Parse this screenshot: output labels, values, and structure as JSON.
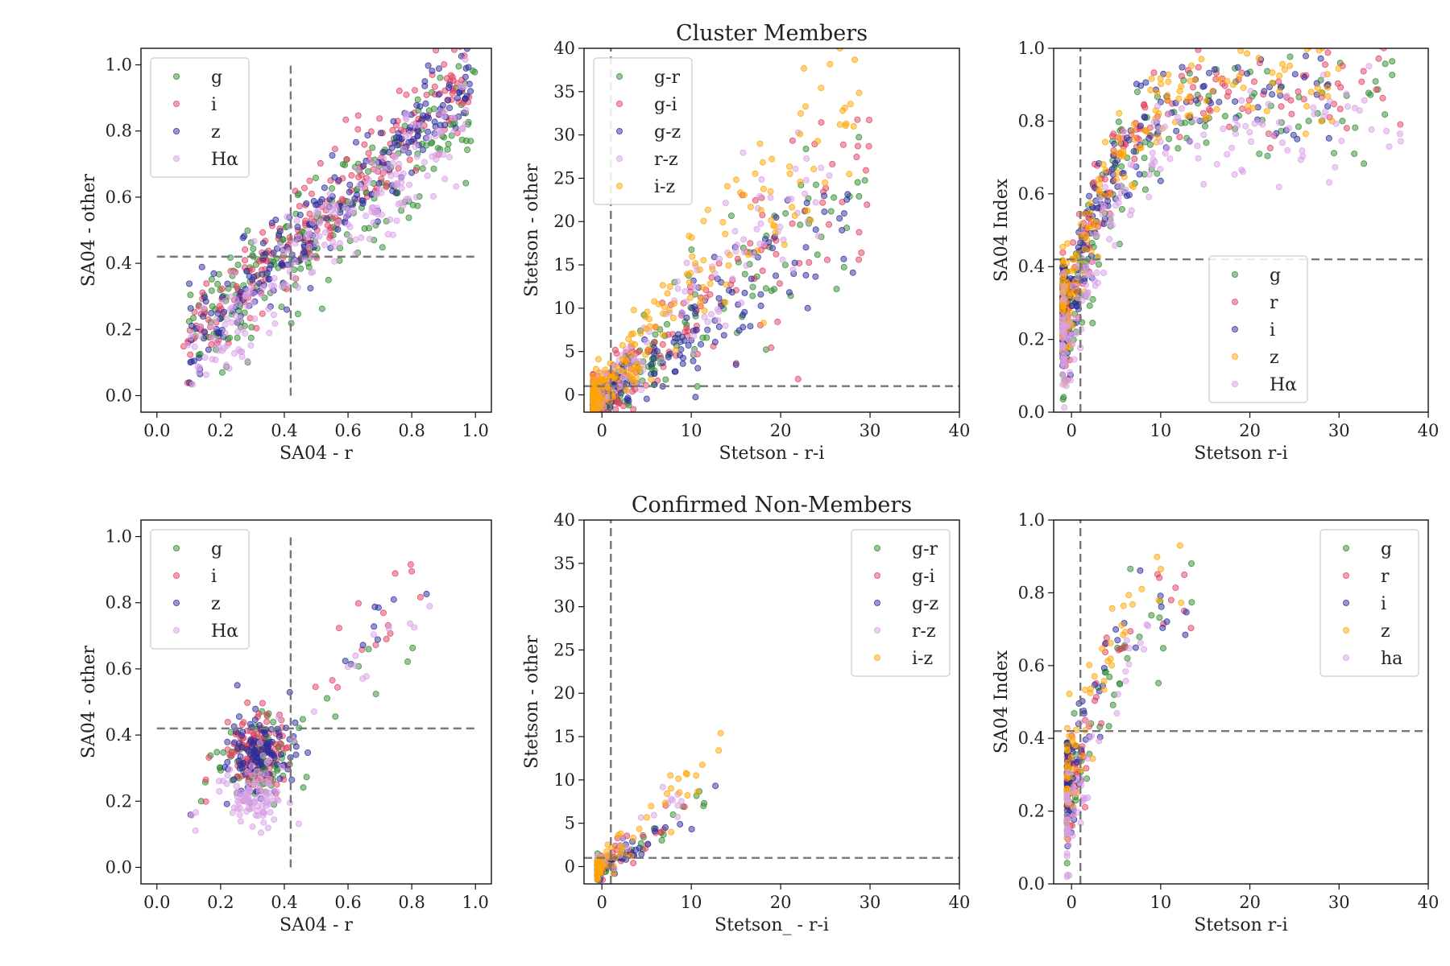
{
  "figure_titles": [
    "Cluster Members",
    "Confirmed Non-Members"
  ],
  "colors": {
    "g": "#2e8b2e",
    "r": "#e0405f",
    "i": "#2b2b9c",
    "z": "#ffa500",
    "ha": "#d8a0e6"
  },
  "chart_data": [
    {
      "id": "p00",
      "type": "scatter",
      "title": "",
      "xlabel": "SA04 - r",
      "ylabel": "SA04 - other",
      "xlim": [
        -0.05,
        1.05
      ],
      "ylim": [
        -0.05,
        1.05
      ],
      "xticks": [
        0,
        0.2,
        0.4,
        0.6,
        0.8,
        1.0
      ],
      "xtick_labels": [
        "0.0",
        "0.2",
        "0.4",
        "0.6",
        "0.8",
        "1.0"
      ],
      "yticks": [
        0,
        0.2,
        0.4,
        0.6,
        0.8,
        1.0
      ],
      "ytick_labels": [
        "0.0",
        "0.2",
        "0.4",
        "0.6",
        "0.8",
        "1.0"
      ],
      "hline": {
        "y": 0.42,
        "x_range": [
          0,
          1.0
        ]
      },
      "vline": {
        "x": 0.42,
        "y_range": [
          0,
          1.0
        ]
      },
      "legend": {
        "location": "upper-left",
        "entries": [
          {
            "label": "g",
            "color_key": "g"
          },
          {
            "label": "i",
            "color_key": "r"
          },
          {
            "label": "z",
            "color_key": "i"
          },
          {
            "label": "Hα",
            "color_key": "ha"
          }
        ]
      },
      "series": [
        {
          "name": "g",
          "color_key": "g",
          "trend": "linear",
          "n": 230,
          "x_range": [
            0.1,
            1.0
          ],
          "slope": 0.8,
          "intercept": 0.08,
          "spread": 0.09
        },
        {
          "name": "i",
          "color_key": "r",
          "trend": "linear",
          "n": 230,
          "x_range": [
            0.08,
            0.98
          ],
          "slope": 0.92,
          "intercept": 0.08,
          "spread": 0.07
        },
        {
          "name": "z",
          "color_key": "i",
          "trend": "linear",
          "n": 230,
          "x_range": [
            0.1,
            0.99
          ],
          "slope": 0.9,
          "intercept": 0.07,
          "spread": 0.07
        },
        {
          "name": "Hα",
          "color_key": "ha",
          "trend": "linear",
          "n": 220,
          "x_range": [
            0.09,
            0.97
          ],
          "slope": 0.88,
          "intercept": 0.01,
          "spread": 0.07
        }
      ]
    },
    {
      "id": "p01",
      "type": "scatter",
      "title": "Cluster Members",
      "xlabel": "Stetson - r-i",
      "ylabel": "Stetson - other",
      "xlim": [
        -2,
        40
      ],
      "ylim": [
        -2,
        40
      ],
      "xticks": [
        0,
        10,
        20,
        30,
        40
      ],
      "xtick_labels": [
        "0",
        "10",
        "20",
        "30",
        "40"
      ],
      "yticks": [
        0,
        5,
        10,
        15,
        20,
        25,
        30,
        35,
        40
      ],
      "ytick_labels": [
        "0",
        "5",
        "10",
        "15",
        "20",
        "25",
        "30",
        "35",
        "40"
      ],
      "hline": {
        "y": 1,
        "x_range": [
          -2,
          40
        ]
      },
      "vline": {
        "x": 1,
        "y_range": [
          -2,
          40
        ]
      },
      "legend": {
        "location": "upper-left",
        "entries": [
          {
            "label": "g-r",
            "color_key": "g"
          },
          {
            "label": "g-i",
            "color_key": "r"
          },
          {
            "label": "g-z",
            "color_key": "i"
          },
          {
            "label": "r-z",
            "color_key": "ha"
          },
          {
            "label": "i-z",
            "color_key": "z"
          }
        ]
      },
      "series": [
        {
          "name": "g-r",
          "color_key": "g",
          "trend": "linear",
          "n": 200,
          "x_range": [
            -1,
            30
          ],
          "x_skew": 3,
          "slope": 0.88,
          "intercept": -0.5,
          "spread": 1.6
        },
        {
          "name": "g-i",
          "color_key": "r",
          "trend": "linear",
          "n": 200,
          "x_range": [
            -1,
            30
          ],
          "x_skew": 3,
          "slope": 0.85,
          "intercept": -0.3,
          "spread": 1.5
        },
        {
          "name": "g-z",
          "color_key": "i",
          "trend": "linear",
          "n": 200,
          "x_range": [
            -1,
            29
          ],
          "x_skew": 3,
          "slope": 0.78,
          "intercept": -0.5,
          "spread": 1.4
        },
        {
          "name": "r-z",
          "color_key": "ha",
          "trend": "linear",
          "n": 180,
          "x_range": [
            -1,
            27
          ],
          "x_skew": 3,
          "slope": 1.05,
          "intercept": 0.2,
          "spread": 1.3
        },
        {
          "name": "i-z",
          "color_key": "z",
          "trend": "linear",
          "n": 220,
          "x_range": [
            -1,
            29
          ],
          "x_skew": 3,
          "slope": 1.2,
          "intercept": 0.3,
          "spread": 1.5
        }
      ]
    },
    {
      "id": "p02",
      "type": "scatter",
      "title": "",
      "xlabel": "Stetson r-i",
      "ylabel": "SA04 Index",
      "xlim": [
        -2,
        40
      ],
      "ylim": [
        0,
        1.0
      ],
      "xticks": [
        0,
        10,
        20,
        30,
        40
      ],
      "xtick_labels": [
        "0",
        "10",
        "20",
        "30",
        "40"
      ],
      "yticks": [
        0,
        0.2,
        0.4,
        0.6,
        0.8,
        1.0
      ],
      "ytick_labels": [
        "0.0",
        "0.2",
        "0.4",
        "0.6",
        "0.8",
        "1.0"
      ],
      "hline": {
        "y": 0.42,
        "x_range": [
          -2,
          40
        ]
      },
      "vline": {
        "x": 1,
        "y_range": [
          0,
          1.0
        ]
      },
      "legend": {
        "location": "center-right",
        "entries": [
          {
            "label": "g",
            "color_key": "g"
          },
          {
            "label": "r",
            "color_key": "r"
          },
          {
            "label": "i",
            "color_key": "i"
          },
          {
            "label": "z",
            "color_key": "z"
          },
          {
            "label": "Hα",
            "color_key": "ha"
          }
        ]
      },
      "series": [
        {
          "name": "g",
          "color_key": "g",
          "trend": "saturating",
          "n": 200,
          "x_range": [
            -1,
            37
          ],
          "x_skew": 3,
          "base": 0.25,
          "amp": 0.62,
          "scale": 5,
          "spread": 0.09
        },
        {
          "name": "r",
          "color_key": "r",
          "trend": "saturating",
          "n": 200,
          "x_range": [
            -1,
            37
          ],
          "x_skew": 3,
          "base": 0.28,
          "amp": 0.62,
          "scale": 4.5,
          "spread": 0.07
        },
        {
          "name": "i",
          "color_key": "i",
          "trend": "saturating",
          "n": 200,
          "x_range": [
            -1,
            29
          ],
          "x_skew": 3,
          "base": 0.28,
          "amp": 0.62,
          "scale": 4.5,
          "spread": 0.07
        },
        {
          "name": "z",
          "color_key": "z",
          "trend": "saturating",
          "n": 200,
          "x_range": [
            -1,
            30
          ],
          "x_skew": 3,
          "base": 0.3,
          "amp": 0.62,
          "scale": 4.5,
          "spread": 0.07
        },
        {
          "name": "Hα",
          "color_key": "ha",
          "trend": "saturating",
          "n": 180,
          "x_range": [
            -1,
            37
          ],
          "x_skew": 3,
          "base": 0.2,
          "amp": 0.6,
          "scale": 5,
          "spread": 0.08
        }
      ]
    },
    {
      "id": "p10",
      "type": "scatter",
      "title": "",
      "xlabel": "SA04 - r",
      "ylabel": "SA04 - other",
      "xlim": [
        -0.05,
        1.05
      ],
      "ylim": [
        -0.05,
        1.05
      ],
      "xticks": [
        0,
        0.2,
        0.4,
        0.6,
        0.8,
        1.0
      ],
      "xtick_labels": [
        "0.0",
        "0.2",
        "0.4",
        "0.6",
        "0.8",
        "1.0"
      ],
      "yticks": [
        0,
        0.2,
        0.4,
        0.6,
        0.8,
        1.0
      ],
      "ytick_labels": [
        "0.0",
        "0.2",
        "0.4",
        "0.6",
        "0.8",
        "1.0"
      ],
      "hline": {
        "y": 0.42,
        "x_range": [
          0,
          1.0
        ]
      },
      "vline": {
        "x": 0.42,
        "y_range": [
          0,
          1.0
        ]
      },
      "legend": {
        "location": "upper-left",
        "entries": [
          {
            "label": "g",
            "color_key": "g"
          },
          {
            "label": "i",
            "color_key": "r"
          },
          {
            "label": "z",
            "color_key": "i"
          },
          {
            "label": "Hα",
            "color_key": "ha"
          }
        ]
      },
      "series": [
        {
          "name": "g",
          "color_key": "g",
          "trend": "clustered",
          "n": 120,
          "x_range": [
            0.1,
            0.87
          ],
          "core": [
            0.31,
            0.33
          ],
          "core_spread": [
            0.05,
            0.06
          ],
          "core_frac": 0.8,
          "slope": 0.7,
          "intercept": 0.1,
          "spread": 0.07
        },
        {
          "name": "i",
          "color_key": "r",
          "trend": "clustered",
          "n": 120,
          "x_range": [
            0.1,
            0.87
          ],
          "core": [
            0.31,
            0.35
          ],
          "core_spread": [
            0.05,
            0.06
          ],
          "core_frac": 0.8,
          "slope": 0.95,
          "intercept": 0.08,
          "spread": 0.05
        },
        {
          "name": "z",
          "color_key": "i",
          "trend": "clustered",
          "n": 120,
          "x_range": [
            0.1,
            0.86
          ],
          "core": [
            0.32,
            0.34
          ],
          "core_spread": [
            0.05,
            0.06
          ],
          "core_frac": 0.8,
          "slope": 0.95,
          "intercept": 0.06,
          "spread": 0.05
        },
        {
          "name": "Hα",
          "color_key": "ha",
          "trend": "clustered",
          "n": 110,
          "x_range": [
            0.1,
            0.86
          ],
          "core": [
            0.3,
            0.21
          ],
          "core_spread": [
            0.05,
            0.04
          ],
          "core_frac": 0.8,
          "slope": 0.95,
          "intercept": 0.0,
          "spread": 0.05
        }
      ]
    },
    {
      "id": "p11",
      "type": "scatter",
      "title": "Confirmed Non-Members",
      "xlabel": "Stetson_ - r-i",
      "ylabel": "Stetson - other",
      "xlim": [
        -2,
        40
      ],
      "ylim": [
        -2,
        40
      ],
      "xticks": [
        0,
        10,
        20,
        30,
        40
      ],
      "xtick_labels": [
        "0",
        "10",
        "20",
        "30",
        "40"
      ],
      "yticks": [
        0,
        5,
        10,
        15,
        20,
        25,
        30,
        35,
        40
      ],
      "ytick_labels": [
        "0",
        "5",
        "10",
        "15",
        "20",
        "25",
        "30",
        "35",
        "40"
      ],
      "hline": {
        "y": 1,
        "x_range": [
          -2,
          40
        ]
      },
      "vline": {
        "x": 1,
        "y_range": [
          -2,
          40
        ]
      },
      "legend": {
        "location": "upper-right",
        "entries": [
          {
            "label": "g-r",
            "color_key": "g"
          },
          {
            "label": "g-i",
            "color_key": "r"
          },
          {
            "label": "g-z",
            "color_key": "i"
          },
          {
            "label": "r-z",
            "color_key": "ha"
          },
          {
            "label": "i-z",
            "color_key": "z"
          }
        ]
      },
      "series": [
        {
          "name": "g-r",
          "color_key": "g",
          "trend": "linear",
          "n": 60,
          "x_range": [
            -0.5,
            13.5
          ],
          "x_skew": 4,
          "slope": 0.65,
          "intercept": 0.0,
          "spread": 0.6
        },
        {
          "name": "g-i",
          "color_key": "r",
          "trend": "linear",
          "n": 60,
          "x_range": [
            -0.5,
            9.5
          ],
          "x_skew": 4,
          "slope": 0.7,
          "intercept": 0.0,
          "spread": 0.6
        },
        {
          "name": "g-z",
          "color_key": "i",
          "trend": "linear",
          "n": 60,
          "x_range": [
            -0.5,
            13.5
          ],
          "x_skew": 4,
          "slope": 0.6,
          "intercept": -0.2,
          "spread": 0.6
        },
        {
          "name": "r-z",
          "color_key": "ha",
          "trend": "linear",
          "n": 50,
          "x_range": [
            -0.5,
            9.5
          ],
          "x_skew": 4,
          "slope": 0.9,
          "intercept": 0.3,
          "spread": 0.6
        },
        {
          "name": "i-z",
          "color_key": "z",
          "trend": "linear",
          "n": 70,
          "x_range": [
            -0.5,
            13.5
          ],
          "x_skew": 4,
          "slope": 1.0,
          "intercept": 0.3,
          "spread": 0.7
        }
      ]
    },
    {
      "id": "p12",
      "type": "scatter",
      "title": "",
      "xlabel": "Stetson r-i",
      "ylabel": "SA04 Index",
      "xlim": [
        -2,
        40
      ],
      "ylim": [
        0,
        1.0
      ],
      "xticks": [
        0,
        10,
        20,
        30,
        40
      ],
      "xtick_labels": [
        "0",
        "10",
        "20",
        "30",
        "40"
      ],
      "yticks": [
        0,
        0.2,
        0.4,
        0.6,
        0.8,
        1.0
      ],
      "ytick_labels": [
        "0.0",
        "0.2",
        "0.4",
        "0.6",
        "0.8",
        "1.0"
      ],
      "hline": {
        "y": 0.42,
        "x_range": [
          -2,
          40
        ]
      },
      "vline": {
        "x": 1,
        "y_range": [
          0,
          1.0
        ]
      },
      "legend": {
        "location": "upper-right",
        "entries": [
          {
            "label": "g",
            "color_key": "g"
          },
          {
            "label": "r",
            "color_key": "r"
          },
          {
            "label": "i",
            "color_key": "i"
          },
          {
            "label": "z",
            "color_key": "z"
          },
          {
            "label": "ha",
            "color_key": "ha"
          }
        ]
      },
      "series": [
        {
          "name": "g",
          "color_key": "g",
          "trend": "saturating",
          "n": 70,
          "x_range": [
            -0.5,
            13.5
          ],
          "x_skew": 4,
          "base": 0.25,
          "amp": 0.65,
          "scale": 7,
          "spread": 0.07
        },
        {
          "name": "r",
          "color_key": "r",
          "trend": "saturating",
          "n": 70,
          "x_range": [
            -0.5,
            13.5
          ],
          "x_skew": 4,
          "base": 0.27,
          "amp": 0.65,
          "scale": 6,
          "spread": 0.07
        },
        {
          "name": "i",
          "color_key": "i",
          "trend": "saturating",
          "n": 70,
          "x_range": [
            -0.5,
            13.5
          ],
          "x_skew": 4,
          "base": 0.27,
          "amp": 0.68,
          "scale": 6,
          "spread": 0.07
        },
        {
          "name": "z",
          "color_key": "z",
          "trend": "saturating",
          "n": 70,
          "x_range": [
            -0.5,
            13.5
          ],
          "x_skew": 4,
          "base": 0.29,
          "amp": 0.68,
          "scale": 6,
          "spread": 0.07
        },
        {
          "name": "ha",
          "color_key": "ha",
          "trend": "saturating",
          "n": 60,
          "x_range": [
            -0.5,
            9.5
          ],
          "x_skew": 4,
          "base": 0.16,
          "amp": 0.7,
          "scale": 6,
          "spread": 0.07
        }
      ]
    }
  ]
}
